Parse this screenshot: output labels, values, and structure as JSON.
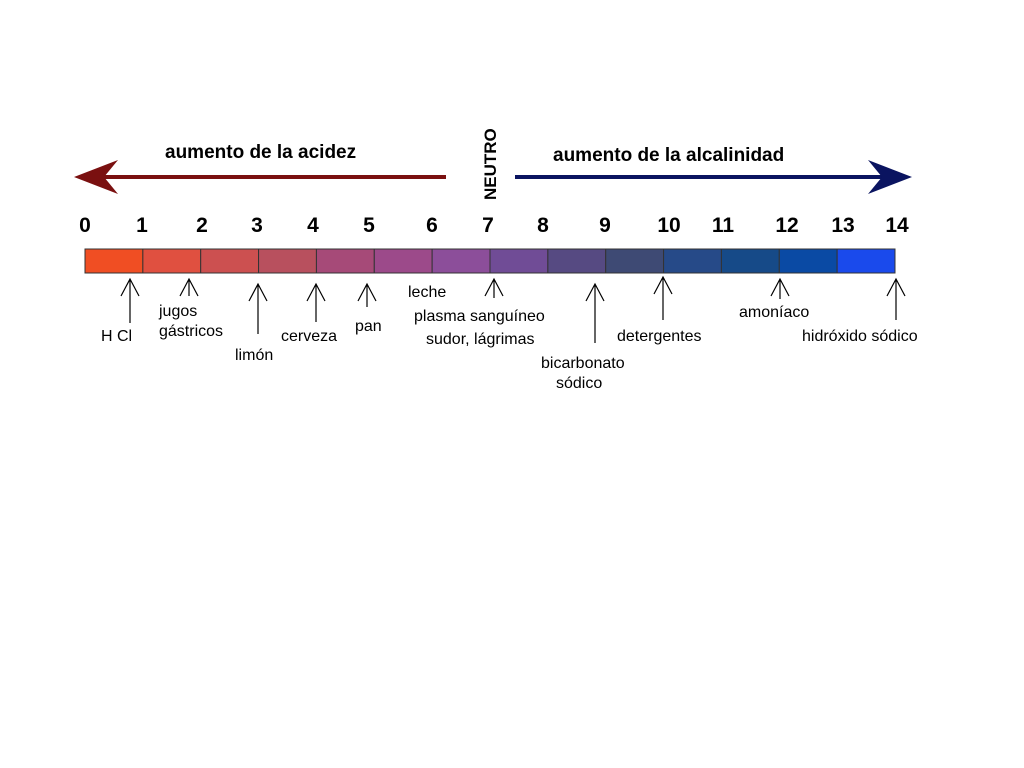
{
  "heading": {
    "acid": "aumento de la acidez",
    "alkaline": "aumento de la alcalinidad",
    "neutral": "NEUTRO"
  },
  "colors": {
    "acid_arrow": "#7a1010",
    "alkaline_arrow": "#0a1460",
    "scale_outline": "#333333"
  },
  "scale": {
    "numbers": [
      "0",
      "1",
      "2",
      "3",
      "4",
      "5",
      "6",
      "7",
      "8",
      "9",
      "10",
      "11",
      "12",
      "13",
      "14"
    ],
    "segment_colors": [
      "#f04e23",
      "#e05040",
      "#cc5050",
      "#b8505e",
      "#a64a78",
      "#9c4a8a",
      "#8c4e9a",
      "#704c96",
      "#564a82",
      "#3e4a74",
      "#264a88",
      "#164a88",
      "#0a4aa4",
      "#1a4aec"
    ]
  },
  "substances": {
    "hcl": "H Cl",
    "jugos": "jugos",
    "gastricos": "gástricos",
    "limon": "limón",
    "cerveza": "cerveza",
    "pan": "pan",
    "leche": "leche",
    "plasma": "plasma sanguíneo",
    "sudor": "sudor, lágrimas",
    "bicarbonato": "bicarbonato",
    "sodico": "sódico",
    "detergentes": "detergentes",
    "amoniaco": "amoníaco",
    "hidroxido": "hidróxido sódico"
  }
}
